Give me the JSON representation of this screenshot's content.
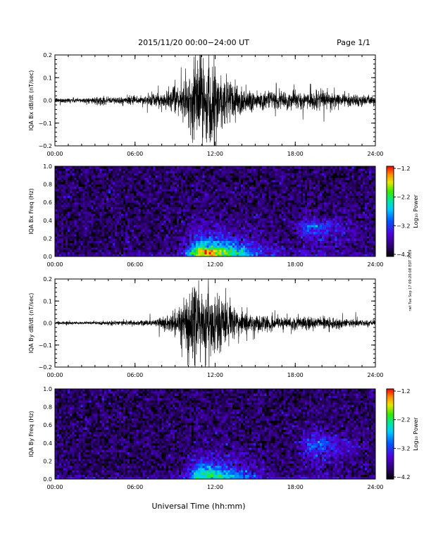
{
  "header": {
    "title": "2015/11/20  00:00−24:00 UT",
    "page": "Page 1/1"
  },
  "footer": {
    "xlabel": "Universal Time (hh:mm)",
    "side_note": "rwt Tue Sep 17 09:20:08 EDT 2019"
  },
  "chart_data": [
    {
      "type": "line",
      "name": "bx-waveform",
      "ylabel": "IQA Bx dB/dt (nT/sec)",
      "ylim": [
        -0.2,
        0.2
      ],
      "yticks": [
        "0.2",
        "0.1",
        "0.0",
        "−0.1",
        "−0.2"
      ],
      "ytick_values": [
        0.2,
        0.1,
        0.0,
        -0.1,
        -0.2
      ],
      "xlim": [
        0,
        24
      ],
      "xticks": [
        "00:00",
        "06:00",
        "12:00",
        "18:00",
        "24:00"
      ],
      "xtick_values": [
        0,
        6,
        12,
        18,
        24
      ],
      "envelope": {
        "hours": [
          0,
          2,
          2.9,
          3.1,
          4,
          6,
          8,
          9.5,
          10,
          10.5,
          11,
          11.5,
          12,
          12.8,
          13.5,
          14,
          15,
          16,
          18,
          20,
          22,
          24
        ],
        "amplitude": [
          0.012,
          0.012,
          0.013,
          0.02,
          0.016,
          0.02,
          0.035,
          0.07,
          0.12,
          0.2,
          0.2,
          0.2,
          0.18,
          0.12,
          0.1,
          0.07,
          0.05,
          0.04,
          0.04,
          0.045,
          0.03,
          0.02
        ]
      }
    },
    {
      "type": "heatmap",
      "name": "bx-spectrogram",
      "ylabel": "IQA Bx Freq (Hz)",
      "ylim": [
        0.0,
        1.0
      ],
      "yticks": [
        "1.0",
        "0.8",
        "0.6",
        "0.4",
        "0.2",
        "0.0"
      ],
      "ytick_values": [
        1.0,
        0.8,
        0.6,
        0.4,
        0.2,
        0.0
      ],
      "xlim": [
        0,
        24
      ],
      "xticks": [
        "00:00",
        "06:00",
        "12:00",
        "18:00",
        "24:00"
      ],
      "xtick_values": [
        0,
        6,
        12,
        18,
        24
      ],
      "colorbar": {
        "label": "Log₁₀ Power",
        "range": [
          -4.2,
          -1.2
        ],
        "ticks": [
          "−1.2",
          "−2.2",
          "−3.2",
          "−4.2"
        ],
        "tick_values": [
          -1.2,
          -2.2,
          -3.2,
          -4.2
        ]
      },
      "events": [
        {
          "hour": 11.0,
          "freq": 0.05,
          "peak_log_power": -1.5,
          "time_width_h": 1.5,
          "freq_extent_hz": 0.3
        },
        {
          "hour": 19.0,
          "freq": 0.35,
          "peak_log_power": -3.0,
          "time_width_h": 1.2,
          "freq_extent_hz": 0.15
        }
      ]
    },
    {
      "type": "line",
      "name": "by-waveform",
      "ylabel": "IQA By dB/dt (nT/sec)",
      "ylim": [
        -0.2,
        0.2
      ],
      "yticks": [
        "0.2",
        "0.1",
        "0.0",
        "−0.1",
        "−0.2"
      ],
      "ytick_values": [
        0.2,
        0.1,
        0.0,
        -0.1,
        -0.2
      ],
      "xlim": [
        0,
        24
      ],
      "xticks": [
        "00:00",
        "06:00",
        "12:00",
        "18:00",
        "24:00"
      ],
      "xtick_values": [
        0,
        6,
        12,
        18,
        24
      ],
      "envelope": {
        "hours": [
          0,
          2,
          4,
          6,
          7,
          8,
          9,
          9.5,
          10,
          10.5,
          11,
          11.5,
          12,
          12.5,
          13,
          14,
          15,
          16,
          18,
          20,
          22,
          24
        ],
        "amplitude": [
          0.008,
          0.008,
          0.01,
          0.012,
          0.015,
          0.025,
          0.06,
          0.1,
          0.15,
          0.2,
          0.2,
          0.2,
          0.16,
          0.12,
          0.09,
          0.06,
          0.05,
          0.035,
          0.03,
          0.03,
          0.02,
          0.015
        ]
      }
    },
    {
      "type": "heatmap",
      "name": "by-spectrogram",
      "ylabel": "IQA By Freq (Hz)",
      "ylim": [
        0.0,
        1.0
      ],
      "yticks": [
        "1.0",
        "0.8",
        "0.6",
        "0.4",
        "0.2",
        "0.0"
      ],
      "ytick_values": [
        1.0,
        0.8,
        0.6,
        0.4,
        0.2,
        0.0
      ],
      "xlim": [
        0,
        24
      ],
      "xticks": [
        "00:00",
        "06:00",
        "12:00",
        "18:00",
        "24:00"
      ],
      "xtick_values": [
        0,
        6,
        12,
        18,
        24
      ],
      "colorbar": {
        "label": "Log₁₀ Power",
        "range": [
          -4.2,
          -1.2
        ],
        "ticks": [
          "−1.2",
          "−2.2",
          "−3.2",
          "−4.2"
        ],
        "tick_values": [
          -1.2,
          -2.2,
          -3.2,
          -4.2
        ]
      },
      "events": [
        {
          "hour": 11.0,
          "freq": 0.05,
          "peak_log_power": -2.2,
          "time_width_h": 1.4,
          "freq_extent_hz": 0.28
        },
        {
          "hour": 19.3,
          "freq": 0.4,
          "peak_log_power": -3.0,
          "time_width_h": 1.2,
          "freq_extent_hz": 0.2
        }
      ]
    }
  ]
}
